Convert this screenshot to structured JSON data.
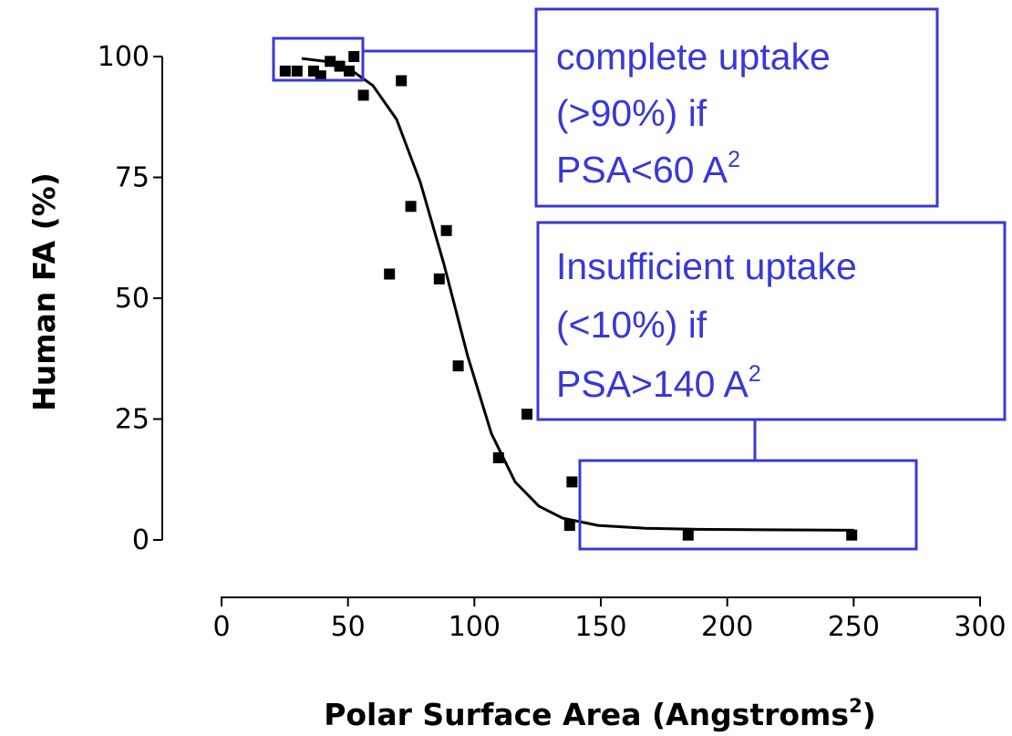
{
  "chart_data": {
    "type": "scatter",
    "title": "",
    "xlabel": "Polar Surface Area (Angstroms",
    "xlabel_superscript": "2",
    "xlabel_close": ")",
    "ylabel": "Human FA (%)",
    "xlim": [
      0,
      300
    ],
    "ylim": [
      0,
      100
    ],
    "x_ticks": [
      0,
      50,
      100,
      150,
      200,
      250,
      300
    ],
    "x_tick_labels": [
      "0",
      "50",
      "100",
      "150",
      "200",
      "250",
      "300"
    ],
    "y_ticks": [
      0,
      25,
      50,
      75,
      100
    ],
    "y_tick_labels": [
      "0",
      "25",
      "50",
      "75",
      "100"
    ],
    "grid": false,
    "series": [
      {
        "points": [
          {
            "x": 28,
            "y": 97
          },
          {
            "x": 33,
            "y": 97
          },
          {
            "x": 40,
            "y": 97
          },
          {
            "x": 43,
            "y": 96
          },
          {
            "x": 47,
            "y": 99
          },
          {
            "x": 51,
            "y": 98
          },
          {
            "x": 55,
            "y": 97
          },
          {
            "x": 57,
            "y": 100
          },
          {
            "x": 61,
            "y": 92
          },
          {
            "x": 77,
            "y": 95
          },
          {
            "x": 72,
            "y": 55
          },
          {
            "x": 81,
            "y": 69
          },
          {
            "x": 93,
            "y": 54
          },
          {
            "x": 96,
            "y": 64
          },
          {
            "x": 101,
            "y": 36
          },
          {
            "x": 118,
            "y": 17
          },
          {
            "x": 130,
            "y": 26
          },
          {
            "x": 148,
            "y": 3
          },
          {
            "x": 149,
            "y": 12
          },
          {
            "x": 198,
            "y": 1
          },
          {
            "x": 267,
            "y": 1
          }
        ]
      },
      {
        "type": "line",
        "points": [
          {
            "x": 35,
            "y": 99.6
          },
          {
            "x": 45,
            "y": 99
          },
          {
            "x": 55,
            "y": 97.5
          },
          {
            "x": 65,
            "y": 94
          },
          {
            "x": 75,
            "y": 87
          },
          {
            "x": 85,
            "y": 74
          },
          {
            "x": 95,
            "y": 57
          },
          {
            "x": 105,
            "y": 38
          },
          {
            "x": 115,
            "y": 22
          },
          {
            "x": 125,
            "y": 12
          },
          {
            "x": 135,
            "y": 7
          },
          {
            "x": 145,
            "y": 4.5
          },
          {
            "x": 160,
            "y": 3
          },
          {
            "x": 180,
            "y": 2.4
          },
          {
            "x": 200,
            "y": 2.2
          },
          {
            "x": 230,
            "y": 2.1
          },
          {
            "x": 268,
            "y": 2
          }
        ]
      }
    ],
    "annotations": [
      {
        "lines": [
          "complete  uptake",
          "(>90%) if",
          "PSA<60 A"
        ],
        "last_line_superscript": "2",
        "highlight_x": [
          27,
          57
        ],
        "highlight_y": [
          95,
          102
        ],
        "color": "#3838d6"
      },
      {
        "lines": [
          "Insufficient uptake",
          "(<10%) if",
          "PSA>140 A"
        ],
        "last_line_superscript": "2",
        "highlight_x": [
          146,
          272
        ],
        "highlight_y": [
          -2,
          13
        ],
        "color": "#3838d6"
      }
    ],
    "colors": {
      "points": "#000000",
      "curve": "#000000",
      "annotation": "#3838d6"
    }
  }
}
